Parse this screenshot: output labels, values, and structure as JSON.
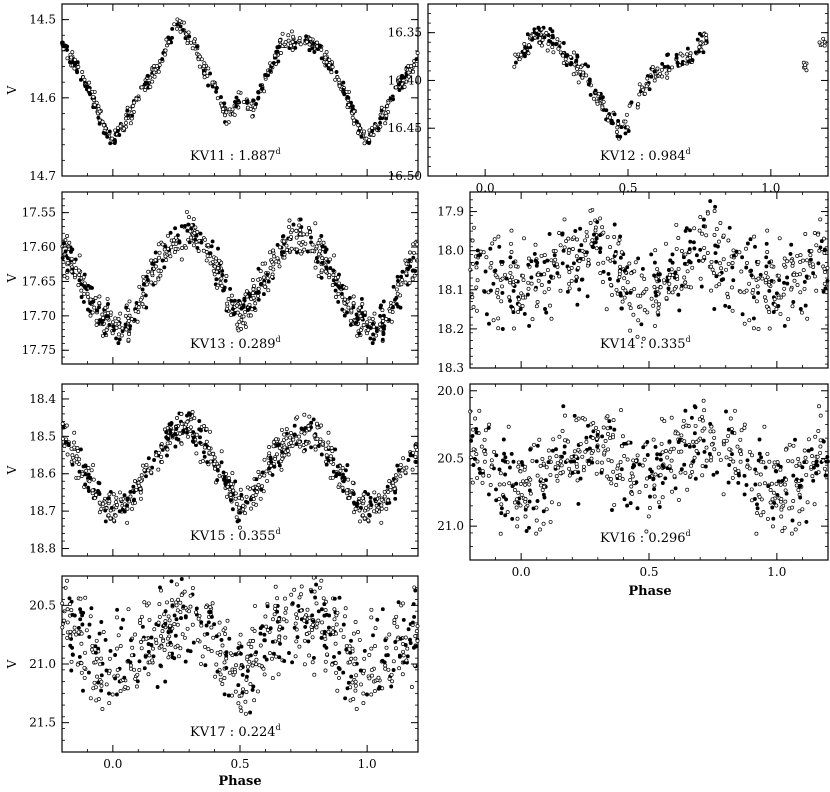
{
  "figure": {
    "x_label": "Phase",
    "y_label": "V",
    "x_tick_labels": [
      "0.0",
      "0.5",
      "1.0"
    ],
    "superscript_d": "d"
  },
  "chart_data": [
    {
      "id": "KV11",
      "type": "scatter",
      "star": "KV11",
      "period_label": "1.887",
      "period_days": 1.887,
      "xlim": [
        -0.2,
        1.2
      ],
      "ylim": [
        14.7,
        14.48
      ],
      "y_inverted": true,
      "yticks": [
        14.5,
        14.6,
        14.7
      ],
      "ytick_labels": [
        "14.5",
        "14.6",
        "14.7"
      ],
      "show_x_tick_labels": false,
      "show_y_label": true,
      "n_points": 420,
      "seed": 11,
      "scatter_mag": 0.006,
      "curve": [
        [
          0.0,
          14.655
        ],
        [
          0.03,
          14.64
        ],
        [
          0.1,
          14.6
        ],
        [
          0.18,
          14.56
        ],
        [
          0.25,
          14.505
        ],
        [
          0.3,
          14.52
        ],
        [
          0.38,
          14.575
        ],
        [
          0.45,
          14.625
        ],
        [
          0.5,
          14.605
        ],
        [
          0.55,
          14.61
        ],
        [
          0.6,
          14.575
        ],
        [
          0.66,
          14.535
        ],
        [
          0.72,
          14.525
        ],
        [
          0.8,
          14.53
        ],
        [
          0.86,
          14.56
        ],
        [
          0.92,
          14.6
        ],
        [
          0.97,
          14.64
        ],
        [
          1.0,
          14.655
        ]
      ]
    },
    {
      "id": "KV12",
      "type": "scatter",
      "star": "KV12",
      "period_label": "0.984",
      "period_days": 0.984,
      "xlim": [
        -0.2,
        1.2
      ],
      "ylim": [
        16.5,
        16.32
      ],
      "y_inverted": true,
      "yticks": [
        16.35,
        16.4,
        16.45,
        16.5
      ],
      "ytick_labels": [
        "16.35",
        "16.40",
        "16.45",
        "16.50"
      ],
      "show_x_tick_labels": true,
      "show_y_label": false,
      "n_points": 280,
      "seed": 12,
      "scatter_mag": 0.006,
      "curve": [
        [
          0.1,
          16.385
        ],
        [
          0.18,
          16.35
        ],
        [
          0.25,
          16.36
        ],
        [
          0.3,
          16.38
        ],
        [
          0.36,
          16.4
        ],
        [
          0.42,
          16.43
        ],
        [
          0.47,
          16.455
        ],
        [
          0.52,
          16.43
        ],
        [
          0.58,
          16.395
        ],
        [
          0.64,
          16.385
        ],
        [
          0.72,
          16.375
        ],
        [
          0.77,
          16.36
        ]
      ],
      "phase_range": [
        0.1,
        0.78
      ],
      "extra_points": [
        [
          1.12,
          16.385
        ],
        [
          1.18,
          16.36
        ]
      ]
    },
    {
      "id": "KV13",
      "type": "scatter",
      "star": "KV13",
      "period_label": "0.289",
      "period_days": 0.289,
      "xlim": [
        -0.2,
        1.2
      ],
      "ylim": [
        17.77,
        17.52
      ],
      "y_inverted": true,
      "yticks": [
        17.55,
        17.6,
        17.65,
        17.7,
        17.75
      ],
      "ytick_labels": [
        "17.55",
        "17.60",
        "17.65",
        "17.70",
        "17.75"
      ],
      "show_x_tick_labels": false,
      "show_y_label": true,
      "n_points": 520,
      "seed": 13,
      "scatter_mag": 0.014,
      "curve": [
        [
          0.0,
          17.72
        ],
        [
          0.08,
          17.7
        ],
        [
          0.15,
          17.64
        ],
        [
          0.22,
          17.6
        ],
        [
          0.3,
          17.575
        ],
        [
          0.38,
          17.61
        ],
        [
          0.45,
          17.67
        ],
        [
          0.5,
          17.7
        ],
        [
          0.55,
          17.68
        ],
        [
          0.62,
          17.63
        ],
        [
          0.7,
          17.59
        ],
        [
          0.76,
          17.585
        ],
        [
          0.84,
          17.62
        ],
        [
          0.92,
          17.68
        ],
        [
          1.0,
          17.72
        ]
      ]
    },
    {
      "id": "KV14",
      "type": "scatter",
      "star": "KV14",
      "period_label": "0.335",
      "period_days": 0.335,
      "xlim": [
        -0.2,
        1.2
      ],
      "ylim": [
        18.3,
        17.85
      ],
      "y_inverted": true,
      "yticks": [
        17.9,
        18.0,
        18.1,
        18.2,
        18.3
      ],
      "ytick_labels": [
        "17.9",
        "18.0",
        "18.1",
        "18.2",
        "18.3"
      ],
      "show_x_tick_labels": false,
      "show_y_label": false,
      "n_points": 460,
      "seed": 14,
      "scatter_mag": 0.055,
      "curve": [
        [
          0.0,
          18.09
        ],
        [
          0.1,
          18.07
        ],
        [
          0.2,
          18.02
        ],
        [
          0.3,
          17.99
        ],
        [
          0.4,
          18.06
        ],
        [
          0.5,
          18.14
        ],
        [
          0.6,
          18.06
        ],
        [
          0.7,
          17.99
        ],
        [
          0.8,
          18.02
        ],
        [
          0.9,
          18.09
        ],
        [
          1.0,
          18.09
        ]
      ]
    },
    {
      "id": "KV15",
      "type": "scatter",
      "star": "KV15",
      "period_label": "0.355",
      "period_days": 0.355,
      "xlim": [
        -0.2,
        1.2
      ],
      "ylim": [
        18.82,
        18.36
      ],
      "y_inverted": true,
      "yticks": [
        18.4,
        18.5,
        18.6,
        18.7,
        18.8
      ],
      "ytick_labels": [
        "18.4",
        "18.5",
        "18.6",
        "18.7",
        "18.8"
      ],
      "show_x_tick_labels": false,
      "show_y_label": true,
      "n_points": 520,
      "seed": 15,
      "scatter_mag": 0.024,
      "curve": [
        [
          0.0,
          18.7
        ],
        [
          0.08,
          18.67
        ],
        [
          0.16,
          18.56
        ],
        [
          0.24,
          18.49
        ],
        [
          0.3,
          18.47
        ],
        [
          0.36,
          18.52
        ],
        [
          0.44,
          18.62
        ],
        [
          0.5,
          18.69
        ],
        [
          0.56,
          18.65
        ],
        [
          0.64,
          18.55
        ],
        [
          0.72,
          18.49
        ],
        [
          0.8,
          18.5
        ],
        [
          0.88,
          18.58
        ],
        [
          0.96,
          18.68
        ],
        [
          1.0,
          18.7
        ]
      ]
    },
    {
      "id": "KV16",
      "type": "scatter",
      "star": "KV16",
      "period_label": "0.296",
      "period_days": 0.296,
      "xlim": [
        -0.2,
        1.2
      ],
      "ylim": [
        21.25,
        19.95
      ],
      "y_inverted": true,
      "yticks": [
        20.0,
        20.5,
        21.0
      ],
      "ytick_labels": [
        "20.0",
        "20.5",
        "21.0"
      ],
      "show_x_tick_labels": true,
      "show_y_label": false,
      "n_points": 460,
      "seed": 16,
      "scatter_mag": 0.16,
      "curve": [
        [
          0.0,
          20.75
        ],
        [
          0.1,
          20.62
        ],
        [
          0.2,
          20.45
        ],
        [
          0.3,
          20.38
        ],
        [
          0.4,
          20.52
        ],
        [
          0.5,
          20.68
        ],
        [
          0.6,
          20.5
        ],
        [
          0.7,
          20.38
        ],
        [
          0.8,
          20.42
        ],
        [
          0.9,
          20.6
        ],
        [
          1.0,
          20.75
        ]
      ]
    },
    {
      "id": "KV17",
      "type": "scatter",
      "star": "KV17",
      "period_label": "0.224",
      "period_days": 0.224,
      "xlim": [
        -0.2,
        1.2
      ],
      "ylim": [
        21.75,
        20.25
      ],
      "y_inverted": true,
      "yticks": [
        20.5,
        21.0,
        21.5
      ],
      "ytick_labels": [
        "20.5",
        "21.0",
        "21.5"
      ],
      "show_x_tick_labels": true,
      "show_y_label": true,
      "n_points": 520,
      "seed": 17,
      "scatter_mag": 0.2,
      "curve": [
        [
          0.0,
          21.05
        ],
        [
          0.1,
          20.9
        ],
        [
          0.2,
          20.68
        ],
        [
          0.3,
          20.62
        ],
        [
          0.4,
          20.85
        ],
        [
          0.5,
          21.1
        ],
        [
          0.6,
          20.82
        ],
        [
          0.7,
          20.6
        ],
        [
          0.8,
          20.65
        ],
        [
          0.9,
          20.88
        ],
        [
          1.0,
          21.05
        ]
      ]
    }
  ]
}
